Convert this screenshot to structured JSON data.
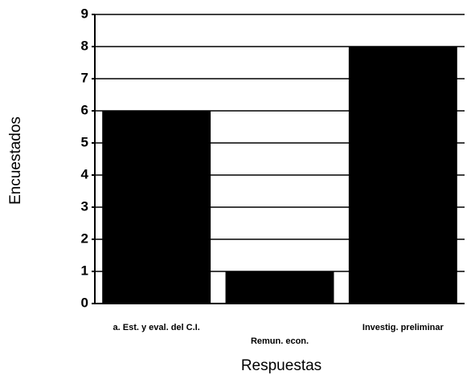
{
  "chart_data": {
    "type": "bar",
    "x_label": "Respuestas",
    "y_label": "Encuestados",
    "categories": [
      "a. Est. y eval. del C.I.",
      "Remun. econ.",
      "Investig. preliminar"
    ],
    "values": [
      6,
      1,
      8
    ],
    "color": "#000000",
    "ylim": [
      0,
      9
    ],
    "yticks": [
      0,
      1,
      2,
      3,
      4,
      5,
      6,
      7,
      8,
      9
    ],
    "grid": true
  }
}
